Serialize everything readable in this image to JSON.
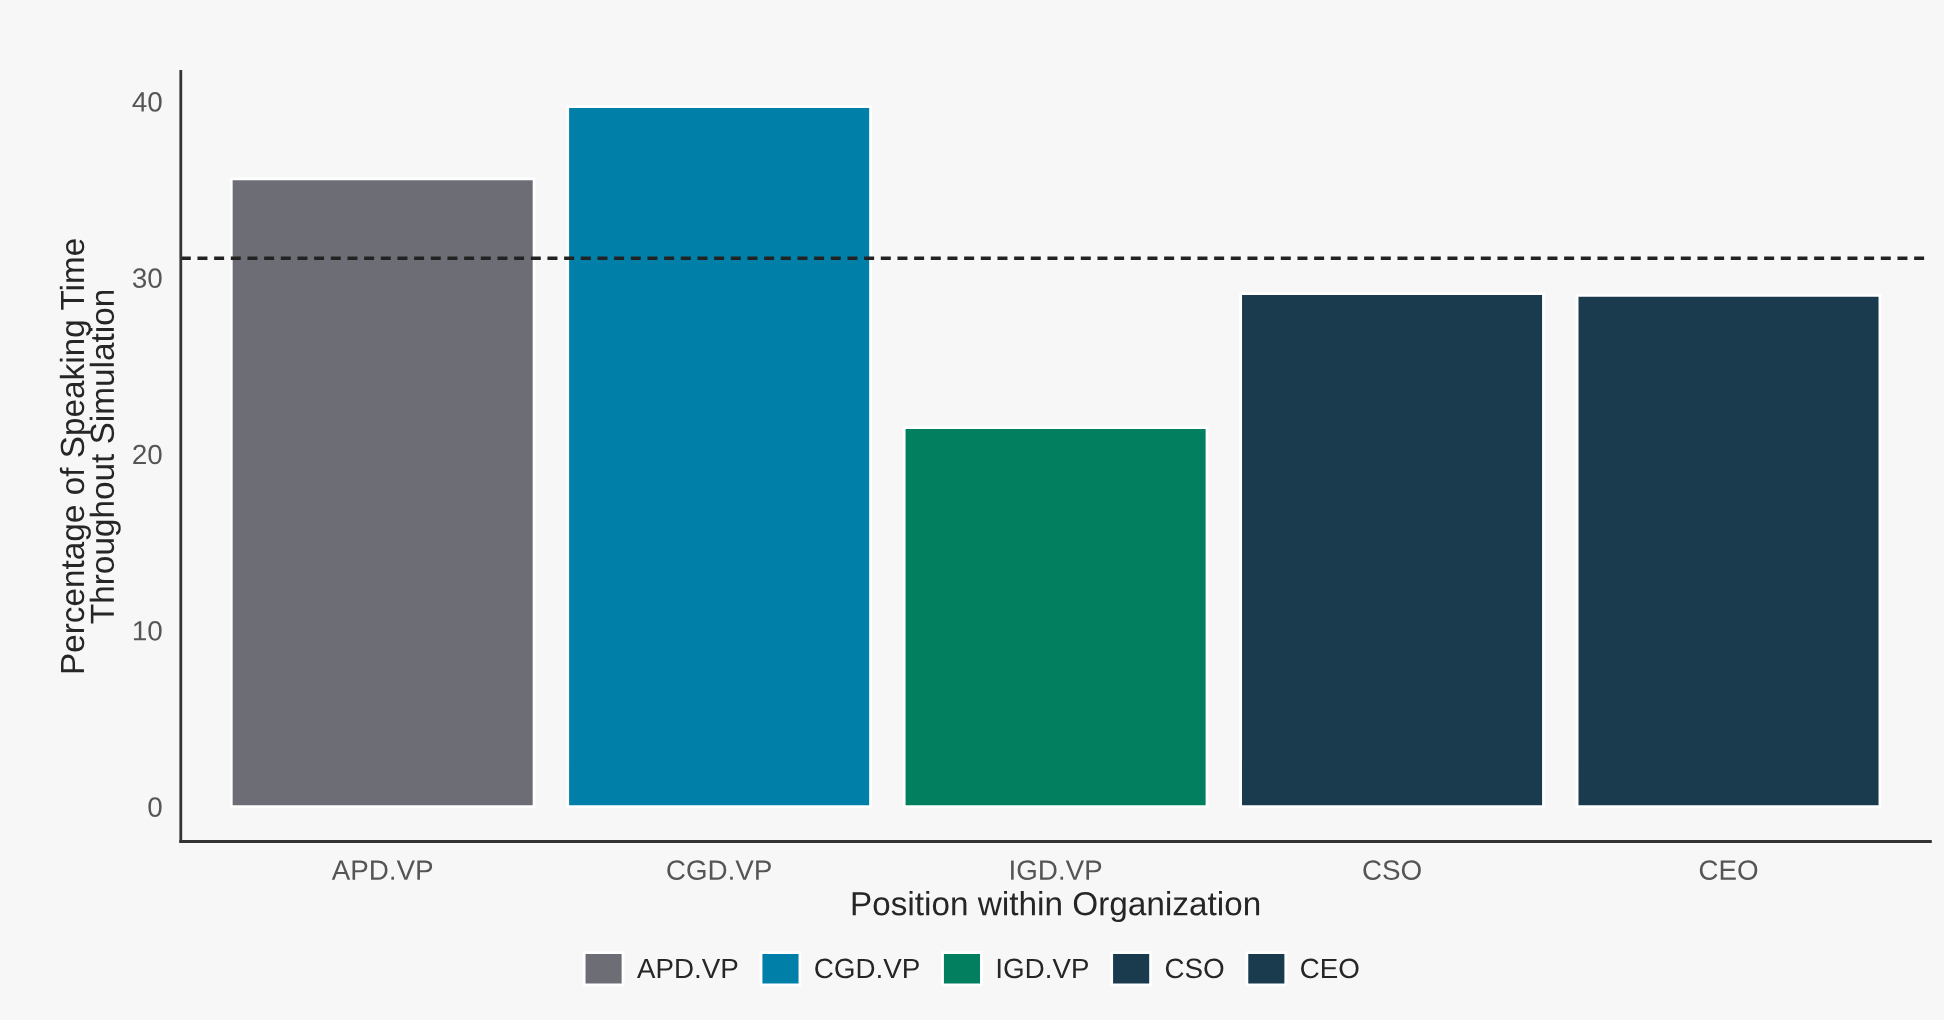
{
  "chart_data": {
    "type": "bar",
    "xlabel": "Position within Organization",
    "ylabel": "Percentage of Speaking Time\nThroughout Simulation",
    "categories": [
      "APD.VP",
      "CGD.VP",
      "IGD.VP",
      "CSO",
      "CEO"
    ],
    "series": [
      {
        "name": "APD.VP",
        "color": "#6d6e75",
        "values": [
          35.6,
          null,
          null,
          null,
          null
        ]
      },
      {
        "name": "CGD.VP",
        "color": "#007fa8",
        "values": [
          null,
          39.7,
          null,
          null,
          null
        ]
      },
      {
        "name": "IGD.VP",
        "color": "#017f5e",
        "values": [
          null,
          null,
          21.5,
          null,
          null
        ]
      },
      {
        "name": "CSO",
        "color": "#1a3a4e",
        "values": [
          null,
          null,
          null,
          29.1,
          null
        ]
      },
      {
        "name": "CEO",
        "color": "#1a3a4e",
        "values": [
          null,
          null,
          null,
          null,
          29.0
        ]
      }
    ],
    "ylim": [
      -1.98,
      41.7
    ],
    "yticks": [
      0,
      10,
      20,
      30,
      40
    ],
    "ref_lines": [
      {
        "axis": "y",
        "value": 31.1,
        "color": "#222222",
        "line_style": "dashed"
      }
    ],
    "grid": false,
    "legend": "bottom"
  }
}
